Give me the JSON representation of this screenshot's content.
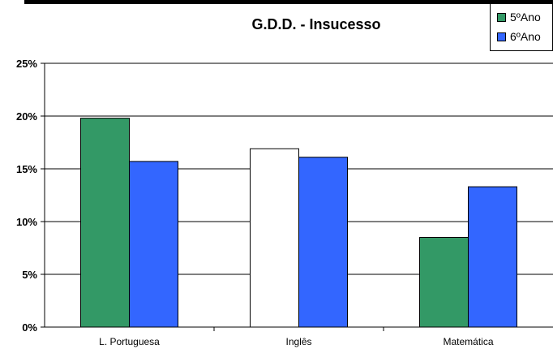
{
  "chart_data": {
    "type": "bar",
    "title": "G.D.D. - Insucesso",
    "xlabel": "",
    "ylabel": "",
    "categories": [
      "L. Portuguesa",
      "Inglês",
      "Matemática"
    ],
    "series": [
      {
        "name": "5ºAno",
        "values": [
          19.8,
          16.9,
          8.5
        ],
        "color": "#339966",
        "point_colors": [
          "#339966",
          "#ffffff",
          "#339966"
        ]
      },
      {
        "name": "6ºAno",
        "values": [
          15.7,
          16.1,
          13.3
        ],
        "color": "#3366ff"
      }
    ],
    "ylim": [
      0,
      25
    ],
    "yticks": [
      0,
      5,
      10,
      15,
      20,
      25
    ],
    "ytick_labels": [
      "0%",
      "5%",
      "10%",
      "15%",
      "20%",
      "25%"
    ],
    "grid": true,
    "legend_position": "top-right"
  }
}
